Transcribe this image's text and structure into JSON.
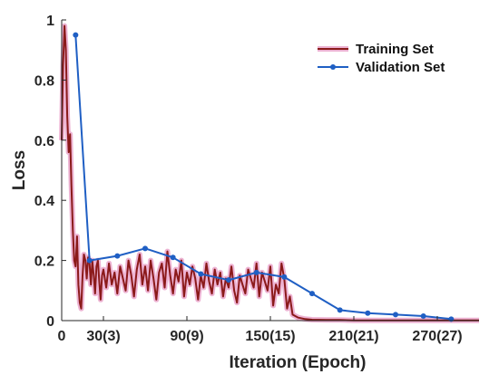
{
  "chart_data": {
    "type": "line",
    "xlabel": "Iteration (Epoch)",
    "ylabel": "Loss",
    "xlim": [
      0,
      300
    ],
    "ylim": [
      0,
      1
    ],
    "x_ticks": [
      {
        "value": 0,
        "label": "0"
      },
      {
        "value": 30,
        "label": "30(3)"
      },
      {
        "value": 90,
        "label": "90(9)"
      },
      {
        "value": 150,
        "label": "150(15)"
      },
      {
        "value": 210,
        "label": "210(21)"
      },
      {
        "value": 270,
        "label": "270(27)"
      }
    ],
    "y_ticks": [
      {
        "value": 0,
        "label": "0"
      },
      {
        "value": 0.2,
        "label": "0.2"
      },
      {
        "value": 0.4,
        "label": "0.4"
      },
      {
        "value": 0.6,
        "label": "0.6"
      },
      {
        "value": 0.8,
        "label": "0.8"
      },
      {
        "value": 1,
        "label": "1"
      }
    ],
    "grid": false,
    "legend_position": "top-right",
    "series": [
      {
        "name": "Training Set",
        "color": "#8B1A1A",
        "highlight_color": "#E8A0C8",
        "marker": "none",
        "x": [
          0,
          1,
          2,
          3,
          4,
          5,
          6,
          7,
          8,
          9,
          10,
          11,
          12,
          13,
          14,
          15,
          16,
          17,
          18,
          19,
          20,
          21,
          22,
          23,
          24,
          25,
          26,
          27,
          28,
          29,
          30,
          32,
          34,
          36,
          38,
          40,
          42,
          44,
          46,
          48,
          50,
          52,
          54,
          56,
          58,
          60,
          62,
          64,
          66,
          68,
          70,
          72,
          74,
          76,
          78,
          80,
          82,
          84,
          86,
          88,
          90,
          92,
          94,
          96,
          98,
          100,
          102,
          104,
          106,
          108,
          110,
          112,
          114,
          116,
          118,
          120,
          122,
          124,
          126,
          128,
          130,
          132,
          134,
          136,
          138,
          140,
          142,
          144,
          146,
          148,
          150,
          152,
          154,
          156,
          158,
          160,
          162,
          164,
          166,
          170,
          175,
          180,
          190,
          200,
          210,
          220,
          230,
          240,
          250,
          260,
          270,
          280,
          290,
          300
        ],
        "y": [
          0.6,
          0.85,
          0.98,
          0.9,
          0.68,
          0.56,
          0.62,
          0.45,
          0.3,
          0.2,
          0.18,
          0.28,
          0.12,
          0.06,
          0.04,
          0.15,
          0.22,
          0.2,
          0.14,
          0.21,
          0.19,
          0.12,
          0.2,
          0.15,
          0.09,
          0.18,
          0.2,
          0.13,
          0.07,
          0.15,
          0.17,
          0.11,
          0.19,
          0.12,
          0.16,
          0.09,
          0.18,
          0.14,
          0.1,
          0.2,
          0.15,
          0.08,
          0.17,
          0.22,
          0.12,
          0.18,
          0.1,
          0.2,
          0.14,
          0.07,
          0.16,
          0.19,
          0.11,
          0.23,
          0.15,
          0.09,
          0.17,
          0.13,
          0.2,
          0.08,
          0.16,
          0.12,
          0.18,
          0.14,
          0.07,
          0.15,
          0.11,
          0.19,
          0.13,
          0.09,
          0.17,
          0.12,
          0.16,
          0.08,
          0.14,
          0.11,
          0.18,
          0.1,
          0.06,
          0.15,
          0.12,
          0.09,
          0.17,
          0.14,
          0.11,
          0.19,
          0.08,
          0.16,
          0.13,
          0.1,
          0.18,
          0.05,
          0.12,
          0.09,
          0.19,
          0.14,
          0.04,
          0.08,
          0.02,
          0.01,
          0.005,
          0.003,
          0.002,
          0.002,
          0.001,
          0.001,
          0.001,
          0.001,
          0.001,
          0.001,
          0.001,
          0.001,
          0.001,
          0.001
        ]
      },
      {
        "name": "Validation Set",
        "color": "#1F5FC4",
        "marker": "circle",
        "x": [
          10,
          20,
          40,
          60,
          80,
          100,
          120,
          140,
          160,
          180,
          200,
          220,
          240,
          260,
          280
        ],
        "y": [
          0.95,
          0.2,
          0.215,
          0.24,
          0.21,
          0.155,
          0.135,
          0.16,
          0.145,
          0.09,
          0.035,
          0.025,
          0.02,
          0.015,
          0.005
        ]
      }
    ]
  }
}
